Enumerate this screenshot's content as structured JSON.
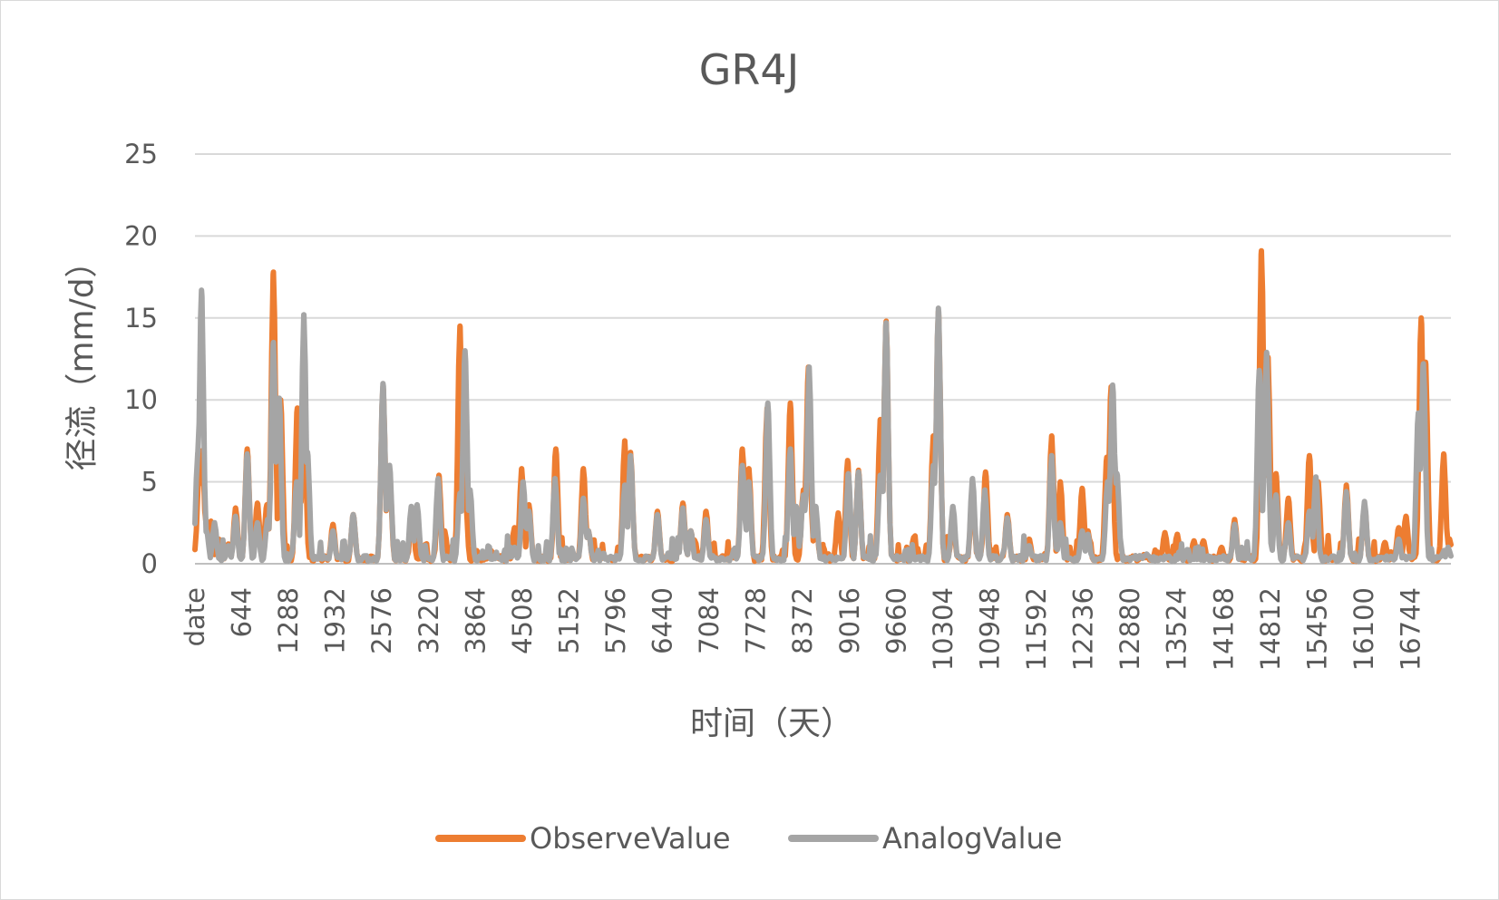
{
  "chart_data": {
    "type": "line",
    "title": "GR4J",
    "xlabel": "时间（天）",
    "ylabel": "径流（mm/d）",
    "ylim": [
      0,
      25
    ],
    "yticks": [
      "0",
      "5",
      "10",
      "15",
      "20",
      "25"
    ],
    "xlim": [
      0,
      17300
    ],
    "xticks": [
      {
        "label": "date",
        "x": 0
      },
      {
        "label": "644",
        "x": 644
      },
      {
        "label": "1288",
        "x": 1288
      },
      {
        "label": "1932",
        "x": 1932
      },
      {
        "label": "2576",
        "x": 2576
      },
      {
        "label": "3220",
        "x": 3220
      },
      {
        "label": "3864",
        "x": 3864
      },
      {
        "label": "4508",
        "x": 4508
      },
      {
        "label": "5152",
        "x": 5152
      },
      {
        "label": "5796",
        "x": 5796
      },
      {
        "label": "6440",
        "x": 6440
      },
      {
        "label": "7084",
        "x": 7084
      },
      {
        "label": "7728",
        "x": 7728
      },
      {
        "label": "8372",
        "x": 8372
      },
      {
        "label": "9016",
        "x": 9016
      },
      {
        "label": "9660",
        "x": 9660
      },
      {
        "label": "10304",
        "x": 10304
      },
      {
        "label": "10948",
        "x": 10948
      },
      {
        "label": "11592",
        "x": 11592
      },
      {
        "label": "12236",
        "x": 12236
      },
      {
        "label": "12880",
        "x": 12880
      },
      {
        "label": "13524",
        "x": 13524
      },
      {
        "label": "14168",
        "x": 14168
      },
      {
        "label": "14812",
        "x": 14812
      },
      {
        "label": "15456",
        "x": 15456
      },
      {
        "label": "16100",
        "x": 16100
      },
      {
        "label": "16744",
        "x": 16744
      }
    ],
    "grid": true,
    "legend": "bottom",
    "series": [
      {
        "name": "ObserveValue",
        "color": "#ED7D31",
        "peaks": [
          [
            60,
            5.8
          ],
          [
            100,
            6.9
          ],
          [
            160,
            2.5
          ],
          [
            220,
            2.6
          ],
          [
            330,
            1.5
          ],
          [
            460,
            1.2
          ],
          [
            560,
            3.4
          ],
          [
            720,
            7.0
          ],
          [
            860,
            3.7
          ],
          [
            990,
            3.6
          ],
          [
            1080,
            17.8
          ],
          [
            1180,
            10.0
          ],
          [
            1410,
            9.5
          ],
          [
            1500,
            10.0
          ],
          [
            1900,
            2.4
          ],
          [
            2180,
            3.0
          ],
          [
            2590,
            10.8
          ],
          [
            2680,
            5.5
          ],
          [
            2990,
            3.4
          ],
          [
            3360,
            5.4
          ],
          [
            3440,
            2.0
          ],
          [
            3650,
            14.5
          ],
          [
            3720,
            4.5
          ],
          [
            3880,
            0.8
          ],
          [
            4080,
            0.8
          ],
          [
            4400,
            2.2
          ],
          [
            4500,
            5.8
          ],
          [
            4600,
            3.6
          ],
          [
            4970,
            7.0
          ],
          [
            5350,
            5.8
          ],
          [
            5420,
            2.0
          ],
          [
            5920,
            7.5
          ],
          [
            6000,
            6.8
          ],
          [
            6370,
            3.2
          ],
          [
            6720,
            3.7
          ],
          [
            6830,
            2.0
          ],
          [
            7040,
            3.2
          ],
          [
            7540,
            7.0
          ],
          [
            7630,
            5.8
          ],
          [
            7880,
            9.5
          ],
          [
            8200,
            9.8
          ],
          [
            8380,
            4.5
          ],
          [
            8450,
            12.0
          ],
          [
            8550,
            3.0
          ],
          [
            8650,
            1.1
          ],
          [
            8860,
            3.1
          ],
          [
            8990,
            6.3
          ],
          [
            9140,
            5.7
          ],
          [
            9440,
            8.8
          ],
          [
            9520,
            14.8
          ],
          [
            9900,
            1.6
          ],
          [
            10170,
            7.8
          ],
          [
            10240,
            15.4
          ],
          [
            10440,
            2.8
          ],
          [
            10710,
            4.5
          ],
          [
            10890,
            5.6
          ],
          [
            11190,
            3.0
          ],
          [
            11490,
            1.5
          ],
          [
            11800,
            7.8
          ],
          [
            11920,
            5.0
          ],
          [
            12220,
            4.6
          ],
          [
            12300,
            2.0
          ],
          [
            12560,
            6.5
          ],
          [
            12620,
            10.8
          ],
          [
            13060,
            0.4
          ],
          [
            13360,
            1.9
          ],
          [
            13530,
            1.8
          ],
          [
            13760,
            1.4
          ],
          [
            13890,
            1.4
          ],
          [
            14140,
            1.0
          ],
          [
            14320,
            2.7
          ],
          [
            14690,
            19.1
          ],
          [
            14780,
            12.6
          ],
          [
            14890,
            5.5
          ],
          [
            15060,
            4.0
          ],
          [
            15350,
            6.6
          ],
          [
            15470,
            5.0
          ],
          [
            15860,
            4.8
          ],
          [
            16110,
            3.6
          ],
          [
            16390,
            1.3
          ],
          [
            16580,
            2.2
          ],
          [
            16680,
            2.9
          ],
          [
            16890,
            15.0
          ],
          [
            16950,
            12.3
          ],
          [
            17200,
            6.7
          ],
          [
            17280,
            1.5
          ]
        ]
      },
      {
        "name": "AnalogValue",
        "color": "#A5A5A5",
        "peaks": [
          [
            40,
            6.8
          ],
          [
            90,
            16.7
          ],
          [
            160,
            2.0
          ],
          [
            270,
            2.5
          ],
          [
            460,
            1.1
          ],
          [
            560,
            2.9
          ],
          [
            720,
            6.7
          ],
          [
            860,
            2.5
          ],
          [
            1000,
            2.7
          ],
          [
            1080,
            13.5
          ],
          [
            1160,
            10.1
          ],
          [
            1400,
            5.0
          ],
          [
            1500,
            15.2
          ],
          [
            1550,
            6.8
          ],
          [
            1900,
            2.0
          ],
          [
            2180,
            3.0
          ],
          [
            2590,
            11.0
          ],
          [
            2680,
            6.0
          ],
          [
            2980,
            3.5
          ],
          [
            3060,
            3.6
          ],
          [
            3350,
            5.2
          ],
          [
            3650,
            4.3
          ],
          [
            3720,
            13.0
          ],
          [
            3790,
            4.5
          ],
          [
            4400,
            1.0
          ],
          [
            4520,
            5.0
          ],
          [
            4600,
            3.2
          ],
          [
            4960,
            5.2
          ],
          [
            5350,
            4.0
          ],
          [
            5420,
            2.0
          ],
          [
            5920,
            4.8
          ],
          [
            6000,
            6.6
          ],
          [
            6370,
            3.0
          ],
          [
            6720,
            3.4
          ],
          [
            6830,
            2.0
          ],
          [
            7040,
            2.7
          ],
          [
            7540,
            6.0
          ],
          [
            7630,
            5.0
          ],
          [
            7890,
            9.8
          ],
          [
            8200,
            7.0
          ],
          [
            8280,
            3.5
          ],
          [
            8380,
            4.2
          ],
          [
            8460,
            12.0
          ],
          [
            8550,
            3.5
          ],
          [
            9000,
            5.5
          ],
          [
            9140,
            5.6
          ],
          [
            9440,
            5.4
          ],
          [
            9520,
            14.7
          ],
          [
            10170,
            6.0
          ],
          [
            10240,
            15.6
          ],
          [
            10440,
            3.5
          ],
          [
            10710,
            5.2
          ],
          [
            10880,
            4.5
          ],
          [
            11190,
            2.8
          ],
          [
            11490,
            1.1
          ],
          [
            11800,
            6.6
          ],
          [
            11920,
            2.5
          ],
          [
            12220,
            2.0
          ],
          [
            12300,
            1.8
          ],
          [
            12570,
            5.0
          ],
          [
            12640,
            10.9
          ],
          [
            12700,
            5.5
          ],
          [
            14320,
            2.4
          ],
          [
            14660,
            11.8
          ],
          [
            14760,
            12.9
          ],
          [
            14890,
            4.2
          ],
          [
            15060,
            2.5
          ],
          [
            15350,
            3.2
          ],
          [
            15440,
            5.3
          ],
          [
            15860,
            4.4
          ],
          [
            16110,
            3.8
          ],
          [
            16580,
            1.5
          ],
          [
            16850,
            9.2
          ],
          [
            16920,
            12.2
          ],
          [
            17260,
            1.0
          ]
        ]
      }
    ]
  }
}
